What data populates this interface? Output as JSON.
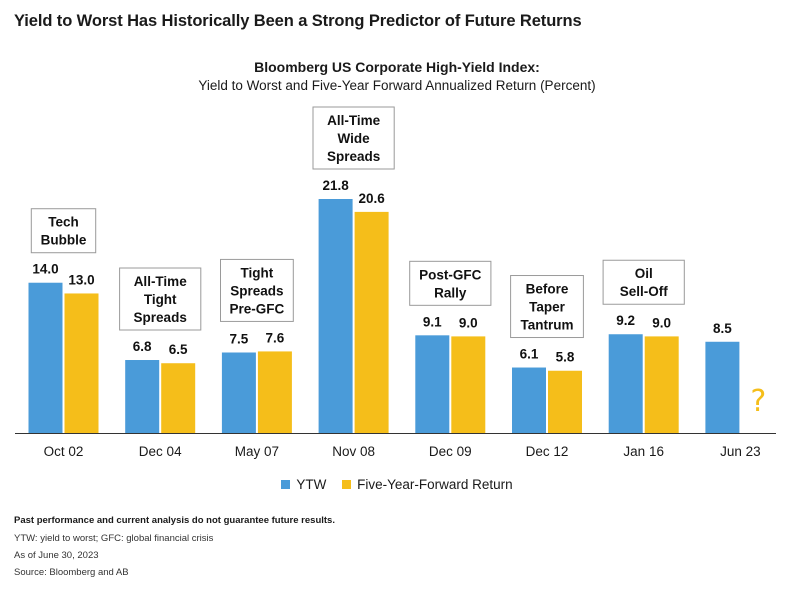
{
  "page_title": "Yield to Worst Has Historically Been a Strong Predictor of Future Returns",
  "colors": {
    "ytw": "#4A9BD9",
    "return": "#F5BE1A",
    "question": "#F5BE1A",
    "axis": "#333333"
  },
  "chart_data": {
    "type": "bar",
    "title": "Bloomberg US Corporate High-Yield Index:",
    "subtitle": "Yield to Worst and Five-Year Forward Annualized Return (Percent)",
    "xlabel": "",
    "ylabel": "",
    "ylim": [
      0,
      22
    ],
    "categories": [
      "Oct 02",
      "Dec 04",
      "May 07",
      "Nov 08",
      "Dec 09",
      "Dec 12",
      "Jan 16",
      "Jun 23"
    ],
    "series": [
      {
        "name": "YTW",
        "values": [
          14.0,
          6.8,
          7.5,
          21.8,
          9.1,
          6.1,
          9.2,
          8.5
        ]
      },
      {
        "name": "Five-Year-Forward Return",
        "values": [
          13.0,
          6.5,
          7.6,
          20.6,
          9.0,
          5.8,
          9.0,
          null
        ]
      }
    ],
    "value_labels": [
      [
        "14.0",
        "6.8",
        "7.5",
        "21.8",
        "9.1",
        "6.1",
        "9.2",
        "8.5"
      ],
      [
        "13.0",
        "6.5",
        "7.6",
        "20.6",
        "9.0",
        "5.8",
        "9.0",
        ""
      ]
    ],
    "annotations": [
      {
        "category": "Oct 02",
        "lines": [
          "Tech",
          "Bubble"
        ]
      },
      {
        "category": "Dec 04",
        "lines": [
          "All-Time",
          "Tight",
          "Spreads"
        ]
      },
      {
        "category": "May 07",
        "lines": [
          "Tight",
          "Spreads",
          "Pre-GFC"
        ]
      },
      {
        "category": "Nov 08",
        "lines": [
          "All-Time",
          "Wide",
          "Spreads"
        ]
      },
      {
        "category": "Dec 09",
        "lines": [
          "Post-GFC",
          "Rally"
        ]
      },
      {
        "category": "Dec 12",
        "lines": [
          "Before",
          "Taper",
          "Tantrum"
        ]
      },
      {
        "category": "Jan 16",
        "lines": [
          "Oil",
          "Sell-Off"
        ]
      }
    ],
    "unknown_marker": {
      "category": "Jun 23",
      "text": "?"
    },
    "legend_position": "bottom",
    "grid": false
  },
  "legend": [
    {
      "label": "YTW"
    },
    {
      "label": "Five-Year-Forward Return"
    }
  ],
  "footer": {
    "disclaimer": "Past performance and current analysis do not guarantee future results.",
    "note": "YTW: yield to worst; GFC: global financial crisis",
    "as_of": "As of June 30, 2023",
    "source": "Source: Bloomberg and AB"
  }
}
